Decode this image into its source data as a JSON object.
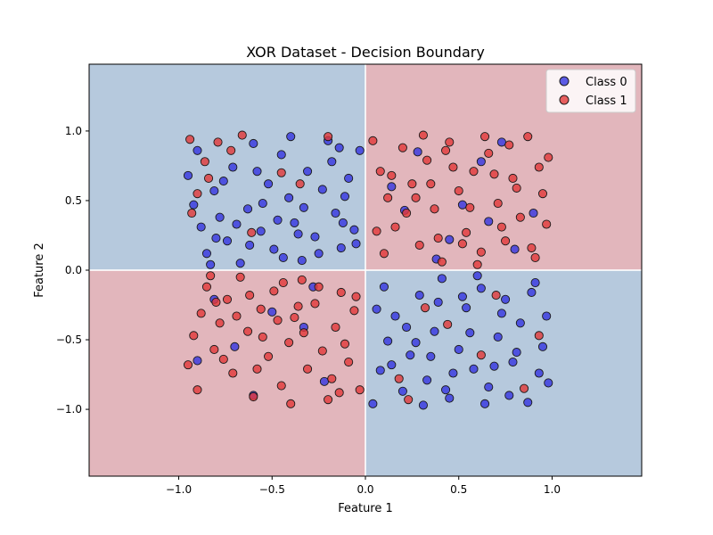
{
  "chart_data": {
    "type": "scatter",
    "title": "XOR Dataset - Decision Boundary",
    "xlabel": "Feature 1",
    "ylabel": "Feature 2",
    "xlim": [
      -1.48,
      1.48
    ],
    "ylim": [
      -1.48,
      1.48
    ],
    "x_ticks": [
      -1.0,
      -0.5,
      0.0,
      0.5,
      1.0
    ],
    "y_ticks": [
      -1.0,
      -0.5,
      0.0,
      0.5,
      1.0
    ],
    "x_tick_labels": [
      "−1.0",
      "−0.5",
      "0.0",
      "0.5",
      "1.0"
    ],
    "y_tick_labels": [
      "−1.0",
      "−0.5",
      "0.0",
      "0.5",
      "1.0"
    ],
    "grid": false,
    "legend_position": "top-right",
    "background_regions": [
      {
        "label": "Class 0",
        "color": "#b6c9dd",
        "x": [
          -1.48,
          0.0
        ],
        "y": [
          0.0,
          1.48
        ]
      },
      {
        "label": "Class 1",
        "color": "#e2b6bc",
        "x": [
          0.0,
          1.48
        ],
        "y": [
          0.0,
          1.48
        ]
      },
      {
        "label": "Class 1",
        "color": "#e2b6bc",
        "x": [
          -1.48,
          0.0
        ],
        "y": [
          -1.48,
          0.0
        ]
      },
      {
        "label": "Class 0",
        "color": "#b6c9dd",
        "x": [
          0.0,
          1.48
        ],
        "y": [
          -1.48,
          0.0
        ]
      }
    ],
    "series": [
      {
        "name": "Class 0",
        "color": "#3535e0",
        "points": [
          [
            -0.95,
            0.68
          ],
          [
            -0.92,
            0.47
          ],
          [
            -0.88,
            0.31
          ],
          [
            -0.85,
            0.12
          ],
          [
            -0.81,
            0.57
          ],
          [
            -0.78,
            0.38
          ],
          [
            -0.74,
            0.21
          ],
          [
            -0.71,
            0.74
          ],
          [
            -0.67,
            0.05
          ],
          [
            -0.63,
            0.44
          ],
          [
            -0.6,
            0.91
          ],
          [
            -0.56,
            0.28
          ],
          [
            -0.52,
            0.62
          ],
          [
            -0.49,
            0.15
          ],
          [
            -0.45,
            0.83
          ],
          [
            -0.41,
            0.52
          ],
          [
            -0.38,
            0.34
          ],
          [
            -0.34,
            0.07
          ],
          [
            -0.31,
            0.71
          ],
          [
            -0.27,
            0.24
          ],
          [
            -0.23,
            0.58
          ],
          [
            -0.2,
            0.93
          ],
          [
            -0.16,
            0.41
          ],
          [
            -0.13,
            0.16
          ],
          [
            -0.09,
            0.66
          ],
          [
            -0.06,
            0.29
          ],
          [
            -0.03,
            0.86
          ],
          [
            -0.9,
            0.86
          ],
          [
            -0.83,
            0.04
          ],
          [
            -0.76,
            0.64
          ],
          [
            -0.69,
            0.33
          ],
          [
            -0.62,
            0.18
          ],
          [
            -0.55,
            0.48
          ],
          [
            -0.47,
            0.36
          ],
          [
            -0.4,
            0.96
          ],
          [
            -0.33,
            0.45
          ],
          [
            -0.25,
            0.12
          ],
          [
            -0.18,
            0.78
          ],
          [
            -0.11,
            0.53
          ],
          [
            -0.05,
            0.19
          ],
          [
            -0.58,
            0.71
          ],
          [
            -0.36,
            0.26
          ],
          [
            -0.14,
            0.88
          ],
          [
            -0.8,
            0.23
          ],
          [
            -0.44,
            0.09
          ],
          [
            0.04,
            -0.96
          ],
          [
            0.08,
            -0.72
          ],
          [
            0.12,
            -0.51
          ],
          [
            0.16,
            -0.33
          ],
          [
            0.2,
            -0.87
          ],
          [
            0.24,
            -0.61
          ],
          [
            0.29,
            -0.18
          ],
          [
            0.33,
            -0.79
          ],
          [
            0.37,
            -0.44
          ],
          [
            0.41,
            -0.06
          ],
          [
            0.45,
            -0.92
          ],
          [
            0.5,
            -0.57
          ],
          [
            0.54,
            -0.27
          ],
          [
            0.58,
            -0.71
          ],
          [
            0.62,
            -0.13
          ],
          [
            0.66,
            -0.84
          ],
          [
            0.71,
            -0.48
          ],
          [
            0.75,
            -0.21
          ],
          [
            0.79,
            -0.66
          ],
          [
            0.83,
            -0.38
          ],
          [
            0.87,
            -0.95
          ],
          [
            0.91,
            -0.09
          ],
          [
            0.95,
            -0.55
          ],
          [
            0.98,
            -0.81
          ],
          [
            0.06,
            -0.28
          ],
          [
            0.14,
            -0.68
          ],
          [
            0.22,
            -0.41
          ],
          [
            0.31,
            -0.97
          ],
          [
            0.39,
            -0.23
          ],
          [
            0.47,
            -0.74
          ],
          [
            0.56,
            -0.45
          ],
          [
            0.64,
            -0.96
          ],
          [
            0.73,
            -0.31
          ],
          [
            0.81,
            -0.59
          ],
          [
            0.89,
            -0.16
          ],
          [
            0.93,
            -0.74
          ],
          [
            0.1,
            -0.12
          ],
          [
            0.27,
            -0.52
          ],
          [
            0.43,
            -0.86
          ],
          [
            0.6,
            -0.04
          ],
          [
            0.77,
            -0.9
          ],
          [
            0.97,
            -0.33
          ],
          [
            0.35,
            -0.62
          ],
          [
            0.52,
            -0.19
          ],
          [
            0.69,
            -0.69
          ],
          [
            -0.12,
            0.34
          ],
          [
            0.21,
            0.43
          ],
          [
            0.62,
            0.78
          ],
          [
            -0.33,
            -0.41
          ],
          [
            0.52,
            0.47
          ],
          [
            0.73,
            0.92
          ],
          [
            0.38,
            0.08
          ],
          [
            0.9,
            0.41
          ],
          [
            0.14,
            0.6
          ],
          [
            0.45,
            0.22
          ],
          [
            0.8,
            0.15
          ],
          [
            0.28,
            0.85
          ],
          [
            -0.7,
            -0.55
          ],
          [
            -0.22,
            -0.8
          ],
          [
            -0.5,
            -0.3
          ],
          [
            -0.9,
            -0.65
          ],
          [
            -0.28,
            -0.12
          ],
          [
            -0.6,
            -0.9
          ],
          [
            -0.81,
            -0.21
          ],
          [
            0.66,
            0.35
          ]
        ]
      },
      {
        "name": "Class 1",
        "color": "#e23838",
        "points": [
          [
            0.04,
            0.93
          ],
          [
            0.08,
            0.71
          ],
          [
            0.12,
            0.52
          ],
          [
            0.16,
            0.31
          ],
          [
            0.2,
            0.88
          ],
          [
            0.25,
            0.62
          ],
          [
            0.29,
            0.18
          ],
          [
            0.33,
            0.79
          ],
          [
            0.37,
            0.44
          ],
          [
            0.41,
            0.06
          ],
          [
            0.45,
            0.92
          ],
          [
            0.5,
            0.57
          ],
          [
            0.54,
            0.27
          ],
          [
            0.58,
            0.71
          ],
          [
            0.62,
            0.13
          ],
          [
            0.66,
            0.84
          ],
          [
            0.71,
            0.48
          ],
          [
            0.75,
            0.21
          ],
          [
            0.79,
            0.66
          ],
          [
            0.83,
            0.38
          ],
          [
            0.87,
            0.96
          ],
          [
            0.91,
            0.09
          ],
          [
            0.95,
            0.55
          ],
          [
            0.98,
            0.81
          ],
          [
            0.06,
            0.28
          ],
          [
            0.14,
            0.68
          ],
          [
            0.22,
            0.41
          ],
          [
            0.31,
            0.97
          ],
          [
            0.39,
            0.23
          ],
          [
            0.47,
            0.74
          ],
          [
            0.56,
            0.45
          ],
          [
            0.64,
            0.96
          ],
          [
            0.73,
            0.31
          ],
          [
            0.81,
            0.59
          ],
          [
            0.89,
            0.16
          ],
          [
            0.93,
            0.74
          ],
          [
            0.1,
            0.12
          ],
          [
            0.27,
            0.52
          ],
          [
            0.43,
            0.86
          ],
          [
            0.6,
            0.04
          ],
          [
            0.77,
            0.9
          ],
          [
            0.97,
            0.33
          ],
          [
            0.35,
            0.62
          ],
          [
            0.52,
            0.19
          ],
          [
            0.69,
            0.69
          ],
          [
            -0.95,
            -0.68
          ],
          [
            -0.92,
            -0.47
          ],
          [
            -0.88,
            -0.31
          ],
          [
            -0.85,
            -0.12
          ],
          [
            -0.81,
            -0.57
          ],
          [
            -0.78,
            -0.38
          ],
          [
            -0.74,
            -0.21
          ],
          [
            -0.71,
            -0.74
          ],
          [
            -0.67,
            -0.05
          ],
          [
            -0.63,
            -0.44
          ],
          [
            -0.6,
            -0.91
          ],
          [
            -0.56,
            -0.28
          ],
          [
            -0.52,
            -0.62
          ],
          [
            -0.49,
            -0.15
          ],
          [
            -0.45,
            -0.83
          ],
          [
            -0.41,
            -0.52
          ],
          [
            -0.38,
            -0.34
          ],
          [
            -0.34,
            -0.07
          ],
          [
            -0.31,
            -0.71
          ],
          [
            -0.27,
            -0.24
          ],
          [
            -0.23,
            -0.58
          ],
          [
            -0.2,
            -0.93
          ],
          [
            -0.16,
            -0.41
          ],
          [
            -0.13,
            -0.16
          ],
          [
            -0.09,
            -0.66
          ],
          [
            -0.06,
            -0.29
          ],
          [
            -0.03,
            -0.86
          ],
          [
            -0.9,
            -0.86
          ],
          [
            -0.83,
            -0.04
          ],
          [
            -0.76,
            -0.64
          ],
          [
            -0.69,
            -0.33
          ],
          [
            -0.62,
            -0.18
          ],
          [
            -0.55,
            -0.48
          ],
          [
            -0.47,
            -0.36
          ],
          [
            -0.4,
            -0.96
          ],
          [
            -0.33,
            -0.45
          ],
          [
            -0.25,
            -0.12
          ],
          [
            -0.18,
            -0.78
          ],
          [
            -0.11,
            -0.53
          ],
          [
            -0.05,
            -0.19
          ],
          [
            -0.58,
            -0.71
          ],
          [
            -0.36,
            -0.26
          ],
          [
            -0.14,
            -0.88
          ],
          [
            -0.8,
            -0.23
          ],
          [
            -0.44,
            -0.09
          ],
          [
            -0.94,
            0.94
          ],
          [
            -0.86,
            0.78
          ],
          [
            -0.79,
            0.92
          ],
          [
            -0.9,
            0.55
          ],
          [
            -0.72,
            0.86
          ],
          [
            -0.84,
            0.66
          ],
          [
            -0.93,
            0.41
          ],
          [
            -0.66,
            0.97
          ],
          [
            -0.2,
            0.96
          ],
          [
            -0.45,
            0.7
          ],
          [
            0.23,
            -0.93
          ],
          [
            0.62,
            -0.61
          ],
          [
            0.85,
            -0.85
          ],
          [
            0.44,
            -0.39
          ],
          [
            0.93,
            -0.47
          ],
          [
            0.18,
            -0.78
          ],
          [
            0.7,
            -0.18
          ],
          [
            0.32,
            -0.27
          ],
          [
            -0.35,
            0.62
          ],
          [
            -0.61,
            0.27
          ]
        ]
      }
    ]
  }
}
